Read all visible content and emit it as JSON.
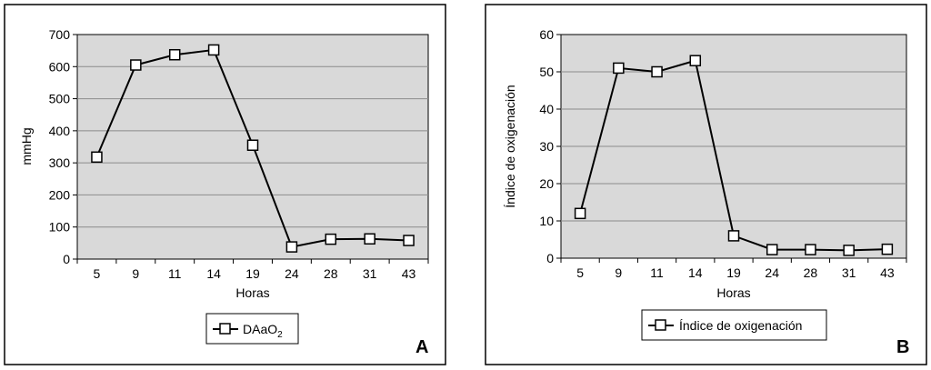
{
  "colors": {
    "plot_bg": "#d9d9d9",
    "gridline": "#8c8c8c",
    "line": "#000000",
    "marker_fill": "#ffffff",
    "frame": "#000000"
  },
  "chart_data": [
    {
      "panel_label": "A",
      "type": "line",
      "categories": [
        "5",
        "9",
        "11",
        "14",
        "19",
        "24",
        "28",
        "31",
        "43"
      ],
      "series": [
        {
          "name": "DAaO2",
          "legend_main": "DAaO",
          "legend_sub": "2",
          "values": [
            318,
            605,
            637,
            652,
            355,
            38,
            62,
            63,
            58
          ]
        }
      ],
      "xlabel": "Horas",
      "ylabel": "mmHg",
      "ylim": [
        0,
        700
      ],
      "yticks": [
        0,
        100,
        200,
        300,
        400,
        500,
        600,
        700
      ],
      "grid": true,
      "legend_position": "bottom-center"
    },
    {
      "panel_label": "B",
      "type": "line",
      "categories": [
        "5",
        "9",
        "11",
        "14",
        "19",
        "24",
        "28",
        "31",
        "43"
      ],
      "series": [
        {
          "name": "Índice de oxigenación",
          "legend_main": "Índice de oxigenación",
          "legend_sub": "",
          "values": [
            12,
            51,
            50,
            53,
            6,
            2.3,
            2.3,
            2.1,
            2.4
          ]
        }
      ],
      "xlabel": "Horas",
      "ylabel": "Índice de oxigenación",
      "ylim": [
        0,
        60
      ],
      "yticks": [
        0,
        10,
        20,
        30,
        40,
        50,
        60
      ],
      "grid": true,
      "legend_position": "bottom-center"
    }
  ]
}
